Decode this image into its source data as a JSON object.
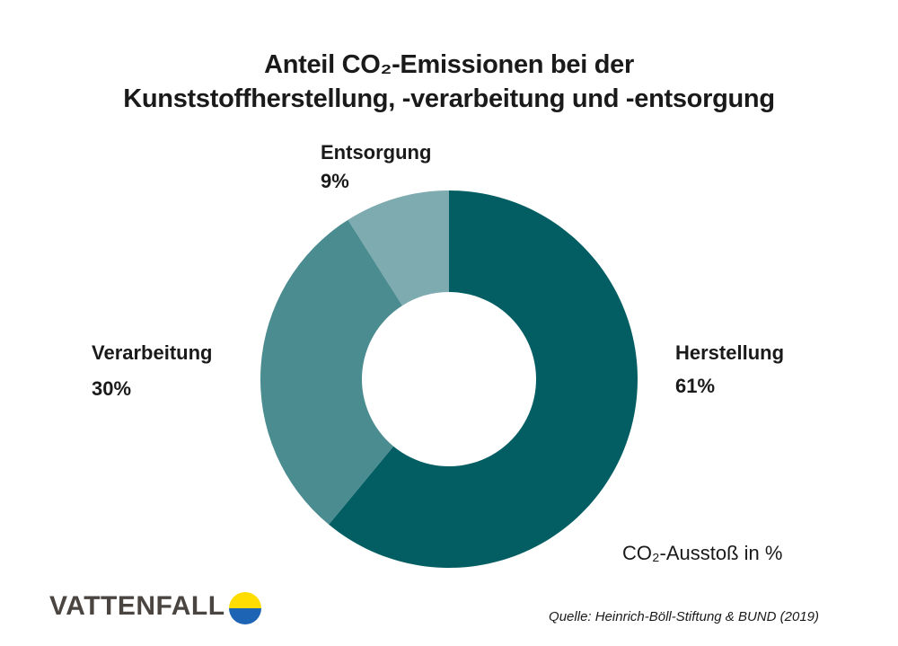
{
  "chart_data": {
    "type": "pie",
    "variant": "donut",
    "title_lines": [
      "Anteil CO₂-Emissionen bei der",
      "Kunststoffherstellung, -verarbeitung und -entsorgung"
    ],
    "unit_label": "CO₂-Ausstoß in %",
    "source": "Quelle: Heinrich-Böll-Stiftung & BUND (2019)",
    "slices": [
      {
        "label": "Herstellung",
        "value": 61,
        "value_label": "61%",
        "color": "#035e63"
      },
      {
        "label": "Verarbeitung",
        "value": 30,
        "value_label": "30%",
        "color": "#4a8c90"
      },
      {
        "label": "Entsorgung",
        "value": 9,
        "value_label": "9%",
        "color": "#7eabb0"
      }
    ]
  },
  "brand": {
    "name": "VATTENFALL",
    "colors": {
      "text": "#4a4541",
      "yellow": "#ffdd00",
      "blue": "#1e64b4"
    }
  }
}
